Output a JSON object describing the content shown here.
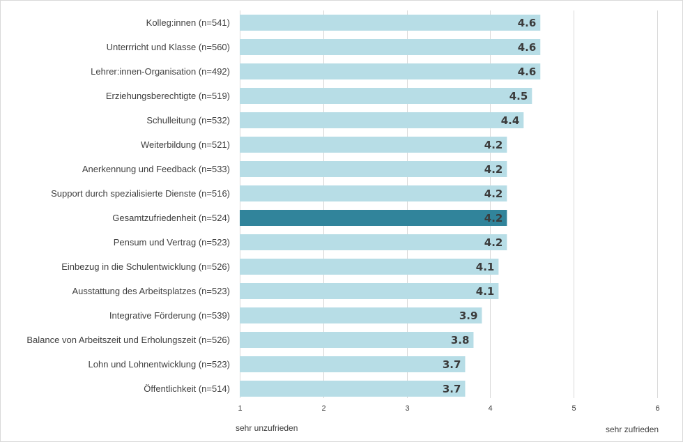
{
  "chart_data": {
    "type": "bar",
    "orientation": "horizontal",
    "categories": [
      "Kolleg:innen (n=541)",
      "Unterrricht und Klasse (n=560)",
      "Lehrer:innen-Organisation (n=492)",
      "Erziehungsberechtigte (n=519)",
      "Schulleitung (n=532)",
      "Weiterbildung (n=521)",
      "Anerkennung und Feedback (n=533)",
      "Support durch spezialisierte Dienste (n=516)",
      "Gesamtzufriedenheit (n=524)",
      "Pensum und Vertrag (n=523)",
      "Einbezug in die Schulentwicklung (n=526)",
      "Ausstattung des Arbeitsplatzes (n=523)",
      "Integrative Förderung (n=539)",
      "Balance von Arbeitszeit und Erholungszeit (n=526)",
      "Lohn und Lohnentwicklung (n=523)",
      "Öffentlichkeit (n=514)"
    ],
    "values": [
      4.6,
      4.6,
      4.6,
      4.5,
      4.4,
      4.2,
      4.2,
      4.2,
      4.2,
      4.2,
      4.1,
      4.1,
      3.9,
      3.8,
      3.7,
      3.7
    ],
    "highlight_index": 8,
    "xlim": [
      1,
      6
    ],
    "xticks": [
      "1",
      "2",
      "3",
      "4",
      "5",
      "6"
    ],
    "x_start_label": "sehr unzufrieden",
    "x_end_label": "sehr zufrieden",
    "grid": "vertical",
    "colors": {
      "bar": "#b7dde6",
      "highlight": "#31849b",
      "grid": "#d9d9d9",
      "text": "#404040"
    }
  }
}
